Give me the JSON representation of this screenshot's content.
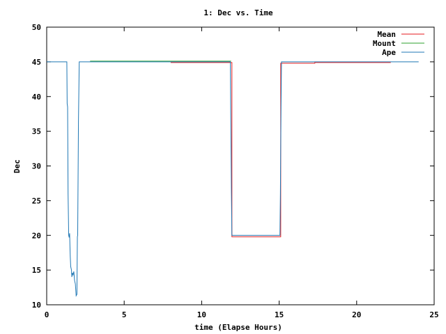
{
  "chart_data": {
    "type": "line",
    "title": "1: Dec vs. Time",
    "xlabel": "time (Elapse Hours)",
    "ylabel": "Dec",
    "xlim": [
      0,
      25
    ],
    "ylim": [
      10,
      50
    ],
    "xticks": [
      0,
      5,
      10,
      15,
      20,
      25
    ],
    "yticks": [
      10,
      15,
      20,
      25,
      30,
      35,
      40,
      45,
      50
    ],
    "grid": false,
    "legend_position": "top-right",
    "series": [
      {
        "name": "Mean",
        "color": "#e41a1c",
        "points": [
          [
            8.0,
            44.9
          ],
          [
            11.95,
            44.9
          ],
          [
            11.95,
            19.8
          ],
          [
            15.1,
            19.8
          ],
          [
            15.1,
            44.8
          ],
          [
            17.3,
            44.8
          ],
          [
            17.3,
            44.9
          ],
          [
            22.2,
            44.9
          ]
        ]
      },
      {
        "name": "Mount",
        "color": "#2ca02c",
        "points": [
          [
            2.8,
            45.1
          ],
          [
            11.9,
            45.1
          ]
        ]
      },
      {
        "name": "Ape",
        "color": "#1f77b4",
        "points": [
          [
            0,
            45
          ],
          [
            1.3,
            45
          ],
          [
            1.32,
            39
          ],
          [
            1.35,
            38.5
          ],
          [
            1.38,
            26
          ],
          [
            1.42,
            20
          ],
          [
            1.45,
            19.7
          ],
          [
            1.48,
            20.3
          ],
          [
            1.5,
            18.5
          ],
          [
            1.52,
            17
          ],
          [
            1.55,
            15.5
          ],
          [
            1.6,
            15
          ],
          [
            1.62,
            14
          ],
          [
            1.65,
            14.6
          ],
          [
            1.7,
            14.3
          ],
          [
            1.75,
            14.8
          ],
          [
            1.8,
            13.5
          ],
          [
            1.85,
            13
          ],
          [
            1.9,
            11.3
          ],
          [
            1.95,
            11.5
          ],
          [
            1.98,
            19.8
          ],
          [
            2.0,
            20
          ],
          [
            2.05,
            36.5
          ],
          [
            2.1,
            45
          ],
          [
            11.85,
            45
          ],
          [
            11.87,
            38.7
          ],
          [
            11.92,
            26
          ],
          [
            11.95,
            20
          ],
          [
            15.05,
            20
          ],
          [
            15.08,
            26
          ],
          [
            15.12,
            38.5
          ],
          [
            15.15,
            45
          ],
          [
            24.0,
            45
          ]
        ]
      }
    ]
  }
}
